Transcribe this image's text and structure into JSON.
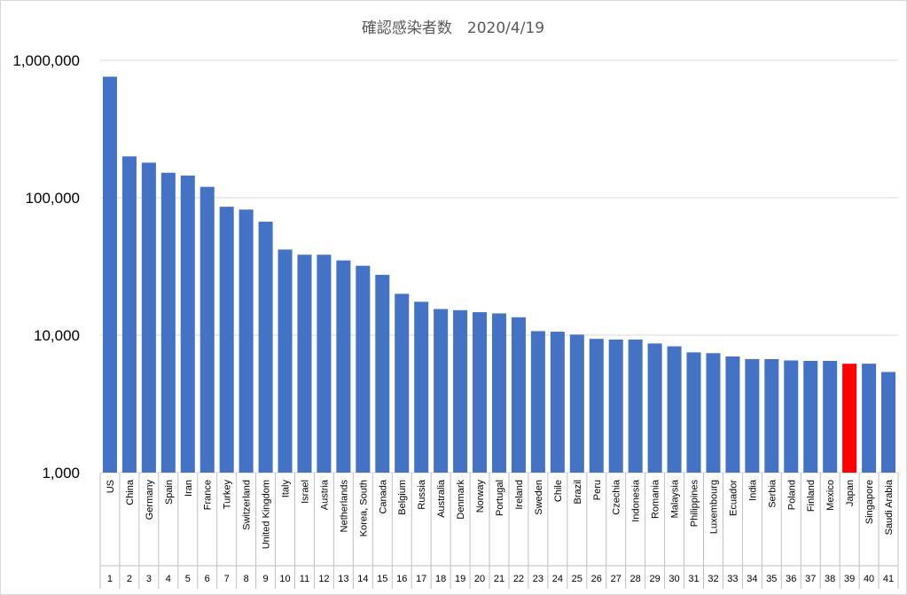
{
  "chart_data": {
    "type": "bar",
    "title": "確認感染者数　2020/4/19",
    "y_scale": "log",
    "ylim": [
      1000,
      1000000
    ],
    "y_ticks": [
      1000,
      10000,
      100000,
      1000000
    ],
    "y_tick_labels": [
      "1,000",
      "10,000",
      "100,000",
      "1,000,000"
    ],
    "grid": true,
    "x_ranks": [
      "1",
      "2",
      "3",
      "4",
      "5",
      "6",
      "7",
      "8",
      "9",
      "10",
      "11",
      "12",
      "13",
      "14",
      "15",
      "16",
      "17",
      "18",
      "19",
      "20",
      "21",
      "22",
      "23",
      "24",
      "25",
      "26",
      "27",
      "28",
      "29",
      "30",
      "31",
      "32",
      "33",
      "34",
      "35",
      "36",
      "37",
      "38",
      "39",
      "40",
      "41"
    ],
    "categories": [
      "US",
      "China",
      "Germany",
      "Spain",
      "Iran",
      "France",
      "Turkey",
      "Switzerland",
      "United Kingdom",
      "Italy",
      "Israel",
      "Austria",
      "Netherlands",
      "Korea, South",
      "Canada",
      "Belgium",
      "Russia",
      "Australia",
      "Denmark",
      "Norway",
      "Portugal",
      "Ireland",
      "Sweden",
      "Chile",
      "Brazil",
      "Peru",
      "Czechia",
      "Indonesia",
      "Romania",
      "Malaysia",
      "Philippines",
      "Luxembourg",
      "Ecuador",
      "India",
      "Serbia",
      "Poland",
      "Finland",
      "Mexico",
      "Japan",
      "Singapore",
      "Saudi Arabia"
    ],
    "values": [
      760000,
      200000,
      180000,
      152000,
      145000,
      120000,
      86000,
      82000,
      67000,
      42000,
      38500,
      38500,
      35000,
      32000,
      27500,
      20000,
      17500,
      15500,
      15200,
      14700,
      14400,
      13500,
      10700,
      10600,
      10100,
      9400,
      9300,
      9300,
      8700,
      8300,
      7500,
      7400,
      7000,
      6700,
      6700,
      6550,
      6500,
      6500,
      6200,
      6200,
      5400
    ],
    "bar_color": "#4472c4",
    "highlight_color": "#ff0000",
    "highlight_category": "Japan"
  }
}
